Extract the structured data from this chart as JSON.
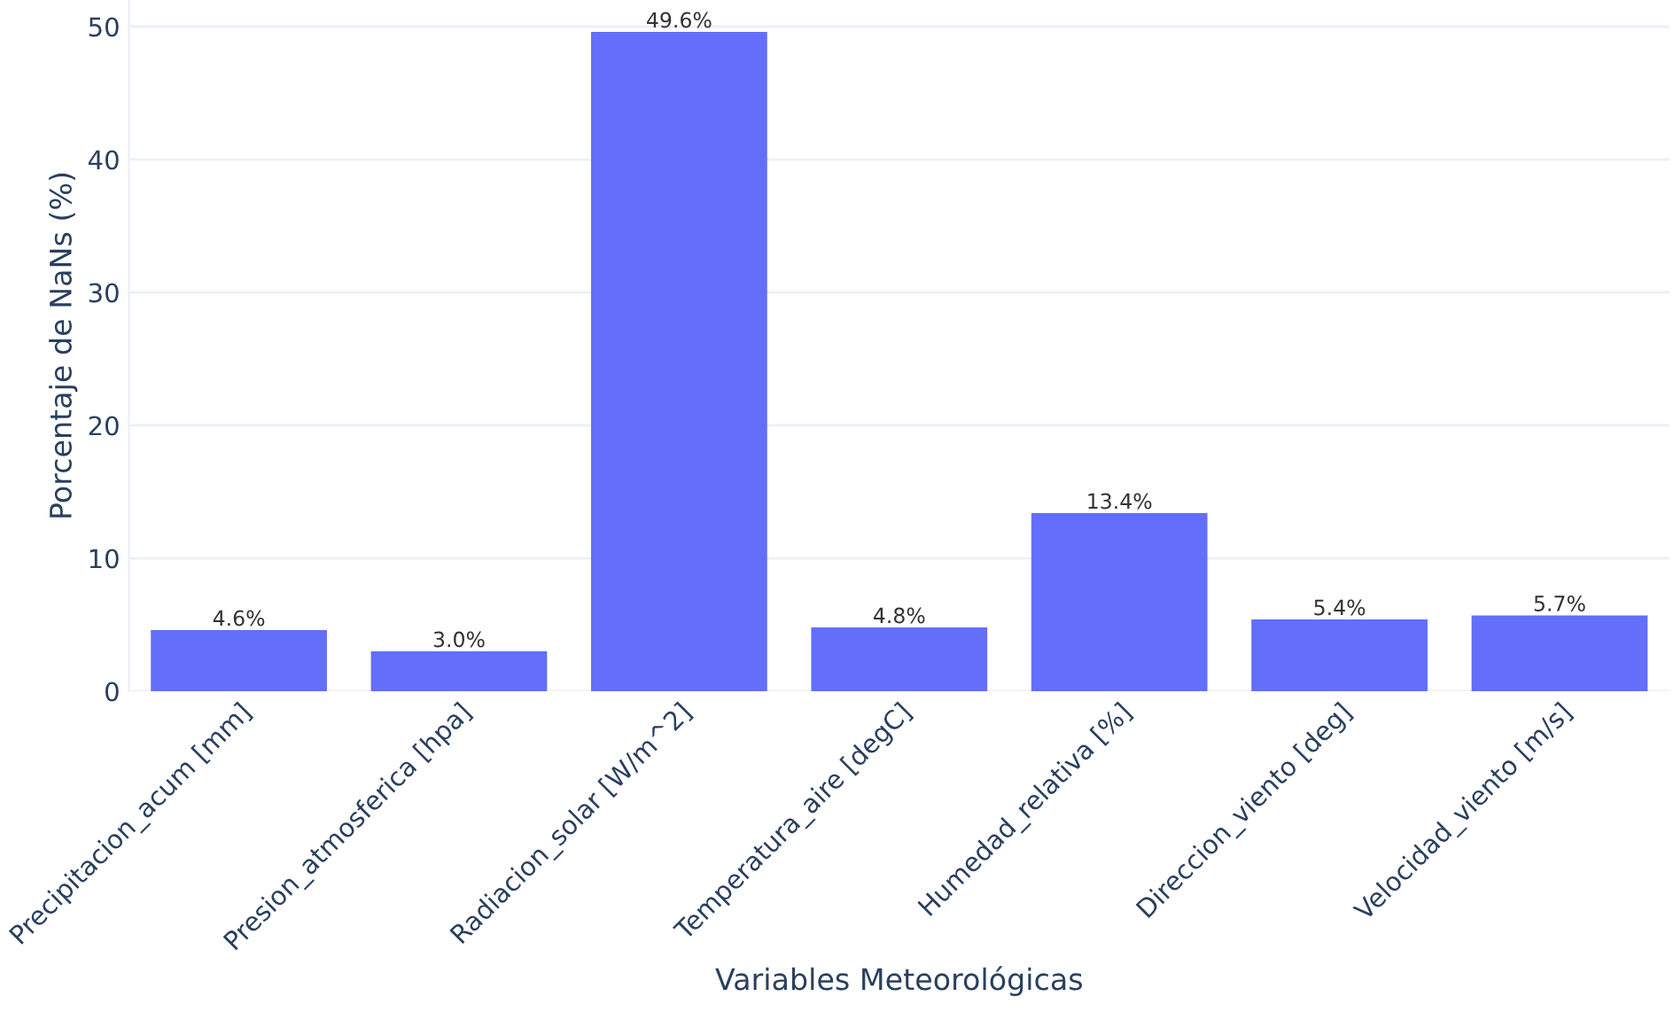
{
  "chart_data": {
    "type": "bar",
    "xlabel": "Variables Meteorológicas",
    "ylabel": "Porcentaje de NaNs (%)",
    "categories": [
      "Precipitacion_acum [mm]",
      "Presion_atmosferica [hpa]",
      "Radiacion_solar [W/m^2]",
      "Temperatura_aire [degC]",
      "Humedad_relativa [%]",
      "Direccion_viento [deg]",
      "Velocidad_viento [m/s]"
    ],
    "values": [
      4.6,
      3.0,
      49.6,
      4.8,
      13.4,
      5.4,
      5.7
    ],
    "value_labels": [
      "4.6%",
      "3.0%",
      "49.6%",
      "4.8%",
      "13.4%",
      "5.4%",
      "5.7%"
    ],
    "color": "#636efa",
    "ylim": [
      0,
      52
    ],
    "yticks": [
      0,
      10,
      20,
      30,
      40,
      50
    ],
    "grid": "y"
  }
}
